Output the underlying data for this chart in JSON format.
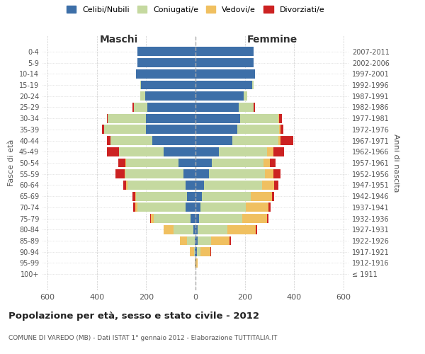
{
  "age_groups": [
    "100+",
    "95-99",
    "90-94",
    "85-89",
    "80-84",
    "75-79",
    "70-74",
    "65-69",
    "60-64",
    "55-59",
    "50-54",
    "45-49",
    "40-44",
    "35-39",
    "30-34",
    "25-29",
    "20-24",
    "15-19",
    "10-14",
    "5-9",
    "0-4"
  ],
  "birth_years": [
    "≤ 1911",
    "1912-1916",
    "1917-1921",
    "1922-1926",
    "1927-1931",
    "1932-1936",
    "1937-1941",
    "1942-1946",
    "1947-1951",
    "1952-1956",
    "1957-1961",
    "1962-1966",
    "1967-1971",
    "1972-1976",
    "1977-1981",
    "1982-1986",
    "1987-1991",
    "1992-1996",
    "1997-2001",
    "2002-2006",
    "2007-2011"
  ],
  "male": {
    "celibi": [
      0,
      0,
      2,
      4,
      8,
      20,
      40,
      35,
      40,
      50,
      70,
      130,
      175,
      200,
      200,
      195,
      205,
      220,
      240,
      235,
      235
    ],
    "coniugati": [
      0,
      0,
      5,
      30,
      80,
      150,
      195,
      205,
      235,
      235,
      210,
      180,
      170,
      170,
      155,
      55,
      20,
      5,
      0,
      0,
      0
    ],
    "vedovi": [
      0,
      2,
      15,
      30,
      40,
      10,
      8,
      5,
      5,
      3,
      3,
      0,
      0,
      0,
      0,
      0,
      0,
      0,
      0,
      0,
      0
    ],
    "divorziati": [
      0,
      0,
      0,
      0,
      2,
      5,
      10,
      10,
      12,
      35,
      30,
      50,
      15,
      10,
      5,
      5,
      0,
      0,
      0,
      0,
      0
    ]
  },
  "female": {
    "nubili": [
      0,
      2,
      5,
      8,
      10,
      15,
      20,
      25,
      35,
      55,
      65,
      95,
      150,
      170,
      180,
      175,
      195,
      230,
      240,
      235,
      235
    ],
    "coniugate": [
      0,
      2,
      15,
      55,
      120,
      175,
      185,
      200,
      235,
      225,
      210,
      195,
      185,
      170,
      155,
      60,
      15,
      5,
      0,
      0,
      0
    ],
    "vedove": [
      0,
      5,
      40,
      75,
      115,
      100,
      90,
      85,
      50,
      35,
      25,
      25,
      10,
      5,
      5,
      0,
      0,
      0,
      0,
      0,
      0
    ],
    "divorziate": [
      0,
      0,
      2,
      5,
      5,
      5,
      10,
      10,
      15,
      30,
      25,
      45,
      50,
      10,
      10,
      5,
      0,
      0,
      0,
      0,
      0
    ]
  },
  "colors": {
    "celibi": "#3d6fa8",
    "coniugati": "#c5d9a0",
    "vedovi": "#f0c060",
    "divorziati": "#cc2222"
  },
  "xlim": 620,
  "title": "Popolazione per età, sesso e stato civile - 2012",
  "subtitle": "COMUNE DI VAREDO (MB) - Dati ISTAT 1° gennaio 2012 - Elaborazione TUTTITALIA.IT",
  "xlabel_left": "Maschi",
  "xlabel_right": "Femmine",
  "ylabel_left": "Fasce di età",
  "ylabel_right": "Anni di nascita",
  "legend_labels": [
    "Celibi/Nubili",
    "Coniugati/e",
    "Vedovi/e",
    "Divorziati/e"
  ]
}
